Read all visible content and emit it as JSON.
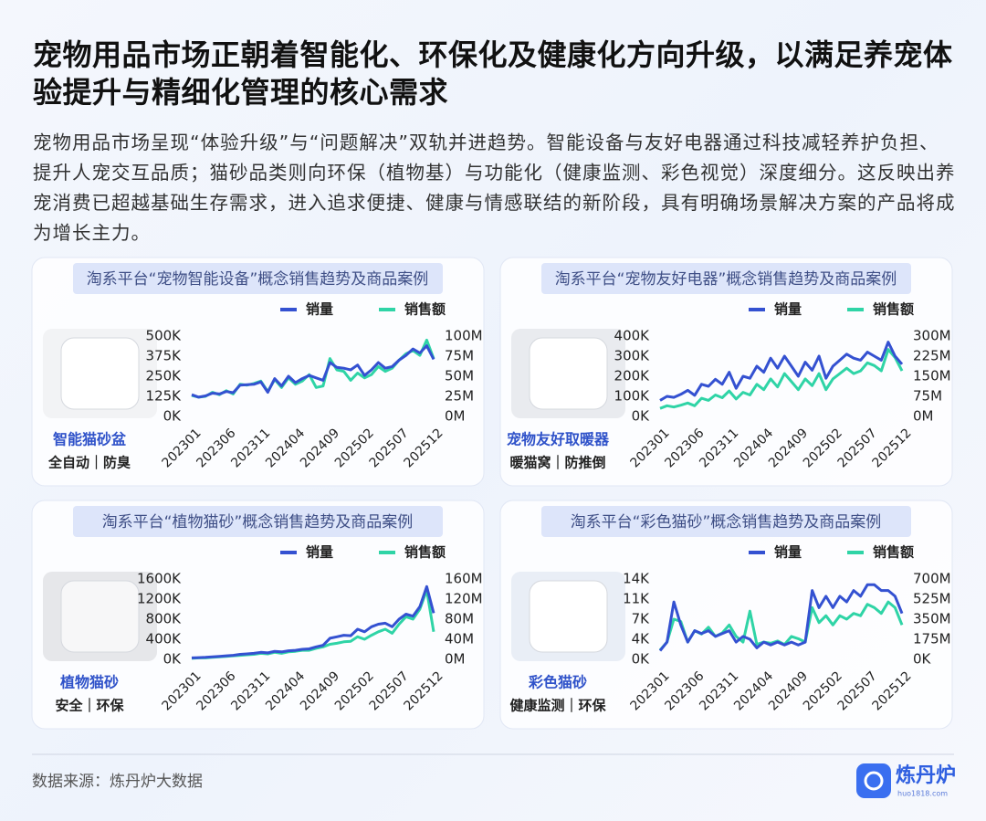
{
  "header": {
    "title": "宠物用品市场正朝着智能化、环保化及健康化方向升级，以满足养宠体验提升与精细化管理的核心需求",
    "description": "宠物用品市场呈现“体验升级”与“问题解决”双轨并进趋势。智能设备与友好电器通过科技减轻养护负担、提升人宠交互品质；猫砂品类则向环保（植物基）与功能化（健康监测、彩色视觉）深度细分。这反映出养宠消费已超越基础生存需求，进入追求便捷、健康与情感联结的新阶段，具有明确场景解决方案的产品将成为增长主力。"
  },
  "footer": {
    "source": "数据来源：炼丹炉大数据",
    "logo": "炼丹炉",
    "logo_url": "huo1818.com"
  },
  "chart_data": [
    {
      "type": "line",
      "title": "淘系平台“宠物智能设备”概念销售趋势及商品案例",
      "product": {
        "name": "智能猫砂盆",
        "tags": "全自动｜防臭"
      },
      "categories": [
        "202301",
        null,
        null,
        null,
        null,
        "202306",
        null,
        null,
        null,
        null,
        "202311",
        null,
        null,
        null,
        null,
        "202404",
        null,
        null,
        null,
        null,
        "202409",
        null,
        null,
        null,
        null,
        "202502",
        null,
        null,
        null,
        null,
        "202507",
        null,
        null,
        null,
        null,
        "202512"
      ],
      "series": [
        {
          "name": "销量",
          "color": "#3451d1",
          "values": [
            135000,
            120000,
            128000,
            145000,
            140000,
            155000,
            148000,
            195000,
            198000,
            200000,
            215000,
            150000,
            235000,
            190000,
            250000,
            210000,
            235000,
            255000,
            240000,
            225000,
            335000,
            305000,
            300000,
            290000,
            320000,
            255000,
            290000,
            335000,
            300000,
            310000,
            350000,
            380000,
            420000,
            395000,
            440000,
            355000
          ]
        },
        {
          "name": "销售额",
          "color": "#2fd4a6",
          "axis": "y2",
          "values": [
            26000000,
            24000000,
            25000000,
            30000000,
            27000000,
            32000000,
            28000000,
            40000000,
            39000000,
            41000000,
            44000000,
            31000000,
            46000000,
            36000000,
            48000000,
            40000000,
            44000000,
            52000000,
            36000000,
            38000000,
            72000000,
            58000000,
            56000000,
            45000000,
            54000000,
            48000000,
            52000000,
            62000000,
            56000000,
            60000000,
            70000000,
            78000000,
            82000000,
            76000000,
            95000000,
            72000000
          ]
        }
      ],
      "ylim": [
        0,
        500000
      ],
      "yticks": [
        {
          "value": 0,
          "label": "0K"
        },
        {
          "value": 125000,
          "label": "125K"
        },
        {
          "value": 250000,
          "label": "250K"
        },
        {
          "value": 375000,
          "label": "375K"
        },
        {
          "value": 500000,
          "label": "500K"
        }
      ],
      "y2lim": [
        0,
        100000000
      ],
      "y2ticks": [
        {
          "value": 0,
          "label": "0M"
        },
        {
          "value": 25000000,
          "label": "25M"
        },
        {
          "value": 50000000,
          "label": "50M"
        },
        {
          "value": 75000000,
          "label": "75M"
        },
        {
          "value": 100000000,
          "label": "100M"
        }
      ]
    },
    {
      "type": "line",
      "title": "淘系平台“宠物友好电器”概念销售趋势及商品案例",
      "product": {
        "name": "宠物友好取暖器",
        "tags": "暖猫窝｜防推倒"
      },
      "categories": [
        "202301",
        null,
        null,
        null,
        null,
        "202306",
        null,
        null,
        null,
        null,
        "202311",
        null,
        null,
        null,
        null,
        "202404",
        null,
        null,
        null,
        null,
        "202409",
        null,
        null,
        null,
        null,
        "202502",
        null,
        null,
        null,
        null,
        "202507",
        null,
        null,
        null,
        null,
        "202512"
      ],
      "series": [
        {
          "name": "销量",
          "color": "#3451d1",
          "values": [
            80000,
            100000,
            95000,
            110000,
            130000,
            105000,
            160000,
            150000,
            185000,
            160000,
            220000,
            140000,
            200000,
            190000,
            250000,
            220000,
            290000,
            240000,
            300000,
            250000,
            200000,
            270000,
            230000,
            300000,
            190000,
            250000,
            280000,
            310000,
            290000,
            280000,
            320000,
            300000,
            280000,
            370000,
            300000,
            260000
          ]
        },
        {
          "name": "销售额",
          "color": "#2fd4a6",
          "axis": "y2",
          "values": [
            30000000,
            40000000,
            35000000,
            42000000,
            50000000,
            40000000,
            68000000,
            60000000,
            80000000,
            70000000,
            95000000,
            65000000,
            90000000,
            80000000,
            120000000,
            100000000,
            140000000,
            110000000,
            160000000,
            130000000,
            100000000,
            140000000,
            115000000,
            160000000,
            100000000,
            140000000,
            160000000,
            180000000,
            160000000,
            170000000,
            200000000,
            190000000,
            170000000,
            250000000,
            220000000,
            170000000
          ]
        }
      ],
      "ylim": [
        0,
        400000
      ],
      "yticks": [
        {
          "value": 0,
          "label": "0K"
        },
        {
          "value": 100000,
          "label": "100K"
        },
        {
          "value": 200000,
          "label": "200K"
        },
        {
          "value": 300000,
          "label": "300K"
        },
        {
          "value": 400000,
          "label": "400K"
        }
      ],
      "y2lim": [
        0,
        300000000
      ],
      "y2ticks": [
        {
          "value": 0,
          "label": "0M"
        },
        {
          "value": 75000000,
          "label": "75M"
        },
        {
          "value": 150000000,
          "label": "150M"
        },
        {
          "value": 225000000,
          "label": "225M"
        },
        {
          "value": 300000000,
          "label": "300M"
        }
      ]
    },
    {
      "type": "line",
      "title": "淘系平台“植物猫砂”概念销售趋势及商品案例",
      "product": {
        "name": "植物猫砂",
        "tags": "安全｜环保"
      },
      "categories": [
        "202301",
        null,
        null,
        null,
        null,
        "202306",
        null,
        null,
        null,
        null,
        "202311",
        null,
        null,
        null,
        null,
        "202404",
        null,
        null,
        null,
        null,
        "202409",
        null,
        null,
        null,
        null,
        "202502",
        null,
        null,
        null,
        null,
        "202507",
        null,
        null,
        null,
        null,
        "202512"
      ],
      "series": [
        {
          "name": "销量",
          "color": "#3451d1",
          "values": [
            30000,
            35000,
            40000,
            50000,
            60000,
            70000,
            80000,
            100000,
            110000,
            120000,
            140000,
            130000,
            160000,
            150000,
            170000,
            180000,
            200000,
            210000,
            250000,
            280000,
            420000,
            450000,
            480000,
            470000,
            600000,
            550000,
            650000,
            700000,
            720000,
            650000,
            800000,
            900000,
            860000,
            1050000,
            1450000,
            920000
          ]
        },
        {
          "name": "销售额",
          "color": "#2fd4a6",
          "axis": "y2",
          "values": [
            2000000,
            3000000,
            3000000,
            4000000,
            5000000,
            6000000,
            7000000,
            8000000,
            9000000,
            10000000,
            12000000,
            11000000,
            14000000,
            12000000,
            15000000,
            16000000,
            18000000,
            18000000,
            22000000,
            25000000,
            30000000,
            32000000,
            35000000,
            36000000,
            45000000,
            40000000,
            48000000,
            55000000,
            60000000,
            52000000,
            70000000,
            85000000,
            80000000,
            100000000,
            138000000,
            55000000
          ]
        }
      ],
      "ylim": [
        0,
        1600000
      ],
      "yticks": [
        {
          "value": 0,
          "label": "0K"
        },
        {
          "value": 400000,
          "label": "400K"
        },
        {
          "value": 800000,
          "label": "800K"
        },
        {
          "value": 1200000,
          "label": "1200K"
        },
        {
          "value": 1600000,
          "label": "1600K"
        }
      ],
      "y2lim": [
        0,
        160000000
      ],
      "y2ticks": [
        {
          "value": 0,
          "label": "0M"
        },
        {
          "value": 40000000,
          "label": "40M"
        },
        {
          "value": 80000000,
          "label": "80M"
        },
        {
          "value": 120000000,
          "label": "120M"
        },
        {
          "value": 160000000,
          "label": "160M"
        }
      ]
    },
    {
      "type": "line",
      "title": "淘系平台“彩色猫砂”概念销售趋势及商品案例",
      "product": {
        "name": "彩色猫砂",
        "tags": "健康监测｜环保"
      },
      "categories": [
        "202301",
        null,
        null,
        null,
        null,
        "202306",
        null,
        null,
        null,
        null,
        "202311",
        null,
        null,
        null,
        null,
        "202404",
        null,
        null,
        null,
        null,
        "202409",
        null,
        null,
        null,
        null,
        "202502",
        null,
        null,
        null,
        null,
        "202507",
        null,
        null,
        null,
        null,
        "202512"
      ],
      "series": [
        {
          "name": "销量",
          "color": "#3451d1",
          "values": [
            1500,
            3000,
            10000,
            6000,
            3000,
            5000,
            4500,
            5000,
            4000,
            4500,
            5000,
            3000,
            4000,
            3500,
            2000,
            3000,
            2500,
            3000,
            2500,
            3000,
            2500,
            3000,
            12000,
            9000,
            11000,
            9000,
            11000,
            10000,
            12000,
            11000,
            13000,
            13000,
            12000,
            12000,
            11000,
            8000
          ]
        },
        {
          "name": "销售额",
          "color": "#2fd4a6",
          "axis": "y2",
          "values": [
            80000000,
            150000000,
            350000000,
            330000000,
            150000000,
            250000000,
            220000000,
            280000000,
            200000000,
            230000000,
            300000000,
            200000000,
            150000000,
            420000000,
            130000000,
            150000000,
            140000000,
            160000000,
            130000000,
            200000000,
            180000000,
            150000000,
            450000000,
            320000000,
            380000000,
            300000000,
            380000000,
            350000000,
            400000000,
            380000000,
            480000000,
            450000000,
            400000000,
            500000000,
            450000000,
            300000000
          ]
        }
      ],
      "ylim": [
        0,
        14000
      ],
      "yticks": [
        {
          "value": 0,
          "label": "0K"
        },
        {
          "value": 3500,
          "label": "4K"
        },
        {
          "value": 7000,
          "label": "7K"
        },
        {
          "value": 10500,
          "label": "11K"
        },
        {
          "value": 14000,
          "label": "14K"
        }
      ],
      "y2lim": [
        0,
        700000000
      ],
      "y2ticks": [
        {
          "value": 0,
          "label": "0K"
        },
        {
          "value": 175000000,
          "label": "175M"
        },
        {
          "value": 350000000,
          "label": "350M"
        },
        {
          "value": 525000000,
          "label": "525M"
        },
        {
          "value": 700000000,
          "label": "700M"
        }
      ]
    }
  ]
}
